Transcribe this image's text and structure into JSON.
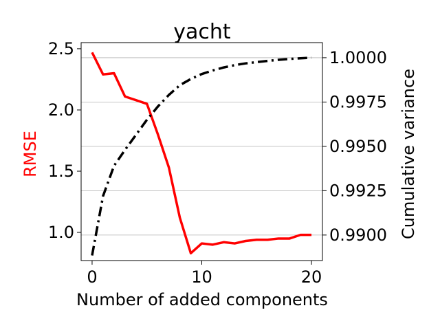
{
  "chart_data": {
    "type": "line",
    "title": "yacht",
    "xlabel": "Number of added components",
    "ylabel_left": "RMSE",
    "ylabel_right": "Cumulative variance",
    "xlim": [
      -1,
      21
    ],
    "ylim_left": [
      0.77,
      2.55
    ],
    "ylim_right": [
      0.98856,
      1.00085
    ],
    "x_ticks": [
      0,
      10,
      20
    ],
    "y_ticks_left": [
      1.0,
      1.5,
      2.0,
      2.5
    ],
    "y_ticks_left_labels": [
      "1.0",
      "1.5",
      "2.0",
      "2.5"
    ],
    "y_ticks_right": [
      0.99,
      0.9925,
      0.995,
      0.9975,
      1.0
    ],
    "y_ticks_right_labels": [
      "0.9900",
      "0.9925",
      "0.9950",
      "0.9975",
      "1.0000"
    ],
    "grid": "horizontal lines at right-axis ticks",
    "series": [
      {
        "name": "RMSE",
        "axis": "left",
        "color": "#ff0000",
        "style": "solid",
        "x": [
          0,
          1,
          2,
          3,
          4,
          5,
          6,
          7,
          8,
          9,
          10,
          11,
          12,
          13,
          14,
          15,
          16,
          17,
          18,
          19,
          20
        ],
        "values": [
          2.47,
          2.29,
          2.3,
          2.11,
          2.08,
          2.05,
          1.8,
          1.53,
          1.12,
          0.83,
          0.91,
          0.9,
          0.92,
          0.91,
          0.93,
          0.94,
          0.94,
          0.95,
          0.95,
          0.98,
          0.98
        ]
      },
      {
        "name": "Cumulative variance",
        "axis": "right",
        "color": "#000000",
        "style": "dashdot",
        "x": [
          0,
          1,
          2,
          3,
          4,
          5,
          6,
          7,
          8,
          9,
          10,
          11,
          12,
          13,
          14,
          15,
          16,
          17,
          18,
          19,
          20
        ],
        "values": [
          0.98885,
          0.9922,
          0.9939,
          0.9948,
          0.99565,
          0.9965,
          0.99725,
          0.9979,
          0.99845,
          0.9988,
          0.99908,
          0.99928,
          0.99945,
          0.99958,
          0.99968,
          0.99975,
          0.99982,
          0.99988,
          0.99993,
          0.99997,
          1.0
        ]
      }
    ]
  }
}
